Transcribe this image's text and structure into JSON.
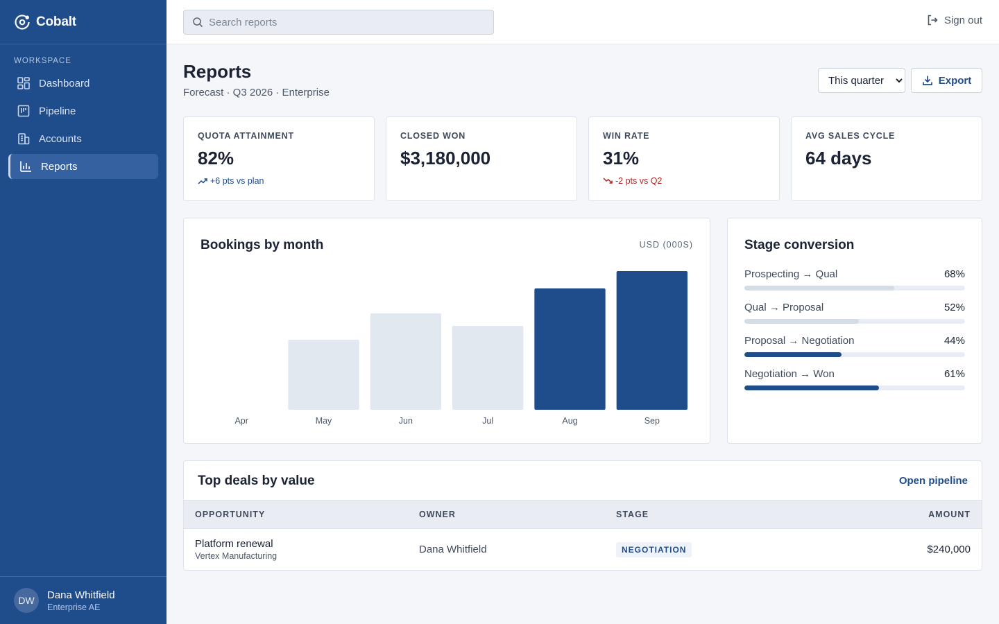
{
  "app": {
    "name": "Cobalt"
  },
  "sidebar": {
    "section_label": "WORKSPACE",
    "items": [
      {
        "label": "Dashboard",
        "icon": "dashboard-icon",
        "active": false
      },
      {
        "label": "Pipeline",
        "icon": "pipeline-icon",
        "active": false
      },
      {
        "label": "Accounts",
        "icon": "accounts-icon",
        "active": false
      },
      {
        "label": "Reports",
        "icon": "reports-icon",
        "active": true
      }
    ],
    "user": {
      "initials": "DW",
      "name": "Dana Whitfield",
      "role": "Enterprise AE"
    }
  },
  "topbar": {
    "search_placeholder": "Search reports",
    "signout_label": "Sign out"
  },
  "header": {
    "title": "Reports",
    "subtitle": "Forecast · Q3 2026 · Enterprise",
    "period_selected": "This quarter",
    "export_label": "Export"
  },
  "kpis": [
    {
      "label": "QUOTA ATTAINMENT",
      "value": "82%",
      "delta": "+6 pts vs plan",
      "trend": "up"
    },
    {
      "label": "CLOSED WON",
      "value": "$3,180,000",
      "delta": "",
      "trend": "none"
    },
    {
      "label": "WIN RATE",
      "value": "31%",
      "delta": "-2 pts vs Q2",
      "trend": "down"
    },
    {
      "label": "AVG SALES CYCLE",
      "value": "64 days",
      "delta": "",
      "trend": "none"
    }
  ],
  "chart_data": {
    "type": "bar",
    "title": "Bookings by month",
    "unit_label": "USD (000S)",
    "categories": [
      "Apr",
      "May",
      "Jun",
      "Jul",
      "Aug",
      "Sep"
    ],
    "values": [
      0,
      505,
      695,
      605,
      875,
      1000
    ],
    "highlighted": [
      false,
      false,
      false,
      false,
      true,
      true
    ],
    "ylim": [
      0,
      1000
    ],
    "grid": false,
    "colors": {
      "muted": "#e2e8f0",
      "highlight": "#1f4d8b"
    }
  },
  "stage_conversion": {
    "title": "Stage conversion",
    "rows": [
      {
        "label": "Prospecting → Qual",
        "pct": "68%",
        "value": 0.68,
        "emphasis": false
      },
      {
        "label": "Qual → Proposal",
        "pct": "52%",
        "value": 0.52,
        "emphasis": false
      },
      {
        "label": "Proposal → Negotiation",
        "pct": "44%",
        "value": 0.44,
        "emphasis": true
      },
      {
        "label": "Negotiation → Won",
        "pct": "61%",
        "value": 0.61,
        "emphasis": true
      }
    ]
  },
  "deals": {
    "title": "Top deals by value",
    "link_label": "Open pipeline",
    "columns": [
      "OPPORTUNITY",
      "OWNER",
      "STAGE",
      "AMOUNT"
    ],
    "rows": [
      {
        "opportunity": "Platform renewal",
        "account": "Vertex Manufacturing",
        "owner": "Dana Whitfield",
        "stage": "NEGOTIATION",
        "amount": "$240,000"
      }
    ]
  },
  "colors": {
    "sidebar_bg": "#1f4d8b",
    "accent": "#1f4d8b",
    "positive": "#1f4d8b",
    "negative": "#b42323",
    "muted_bar": "#d5dce6"
  }
}
